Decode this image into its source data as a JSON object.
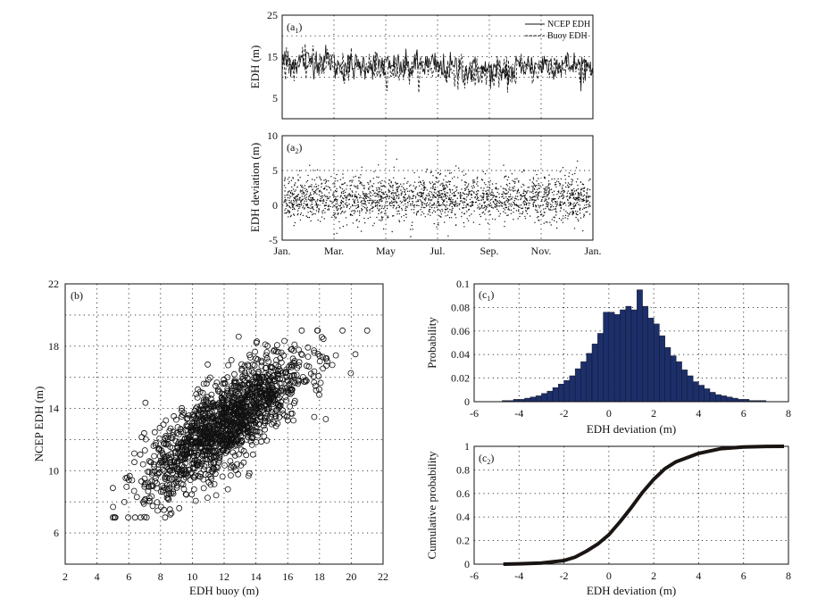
{
  "chart_data": [
    {
      "id": "a1",
      "panel_label": "(a1)",
      "type": "line",
      "ylabel": "EDH (m)",
      "x_ticks": [
        "Jan.",
        "Mar.",
        "May",
        "Jul.",
        "Sep.",
        "Nov.",
        "Jan."
      ],
      "ylim": [
        0,
        25
      ],
      "y_ticks": [
        5,
        15,
        25
      ],
      "grid": true,
      "legend_position": "top-right",
      "series": [
        {
          "name": "NCEP EDH",
          "style": "solid",
          "mean_by_month": [
            13.8,
            14.2,
            12.6,
            13.1,
            12.4,
            12.9,
            12.2,
            11.6,
            11.3,
            12.8,
            13.3,
            12.9
          ]
        },
        {
          "name": "Buoy EDH",
          "style": "dashed",
          "mean_by_month": [
            13.2,
            13.6,
            12.1,
            12.5,
            11.9,
            12.4,
            11.7,
            11.1,
            10.9,
            12.2,
            12.7,
            12.4
          ]
        }
      ],
      "value_range": [
        5,
        19
      ]
    },
    {
      "id": "a2",
      "panel_label": "(a2)",
      "type": "scatter",
      "ylabel": "EDH deviation (m)",
      "x_ticks": [
        "Jan.",
        "Mar.",
        "May",
        "Jul.",
        "Sep.",
        "Nov.",
        "Jan."
      ],
      "ylim": [
        -5,
        10
      ],
      "y_ticks": [
        -5,
        0,
        5,
        10
      ],
      "grid": true,
      "approx_mean": 1.0,
      "approx_spread": [
        -4.5,
        8.5
      ]
    },
    {
      "id": "b",
      "panel_label": "(b)",
      "type": "scatter",
      "xlabel": "EDH buoy (m)",
      "ylabel": "NCEP EDH (m)",
      "xlim": [
        2,
        22
      ],
      "ylim": [
        4,
        22
      ],
      "x_ticks": [
        2,
        4,
        6,
        8,
        10,
        12,
        14,
        16,
        18,
        20,
        22
      ],
      "y_ticks": [
        6,
        10,
        14,
        18,
        22
      ],
      "grid": true,
      "marker": "open-circle",
      "cloud_center": [
        12,
        13
      ],
      "x_range": [
        5,
        21
      ],
      "y_range": [
        7,
        19
      ]
    },
    {
      "id": "c1",
      "panel_label": "(c1)",
      "type": "bar",
      "xlabel": "EDH deviation (m)",
      "ylabel": "Probability",
      "xlim": [
        -6,
        8
      ],
      "ylim": [
        0,
        0.1
      ],
      "x_ticks": [
        -6,
        -4,
        -2,
        0,
        2,
        4,
        6,
        8
      ],
      "y_ticks": [
        "0",
        "0.02",
        "0.04",
        "0.06",
        "0.08",
        "0.1"
      ],
      "grid": true,
      "bar_color": "#1c2f6b",
      "bin_width": 0.25,
      "bin_start": -4.75,
      "values": [
        0.001,
        0.001,
        0.002,
        0.002,
        0.003,
        0.004,
        0.005,
        0.007,
        0.009,
        0.012,
        0.015,
        0.018,
        0.022,
        0.028,
        0.034,
        0.041,
        0.049,
        0.058,
        0.076,
        0.076,
        0.074,
        0.078,
        0.081,
        0.078,
        0.095,
        0.081,
        0.071,
        0.066,
        0.056,
        0.046,
        0.039,
        0.034,
        0.027,
        0.022,
        0.017,
        0.014,
        0.011,
        0.008,
        0.006,
        0.005,
        0.004,
        0.003,
        0.002,
        0.002,
        0.001,
        0.001,
        0.001
      ]
    },
    {
      "id": "c2",
      "panel_label": "(c2)",
      "type": "line",
      "xlabel": "EDH deviation (m)",
      "ylabel": "Cumulative probability",
      "xlim": [
        -6,
        8
      ],
      "ylim": [
        0,
        1
      ],
      "x_ticks": [
        -6,
        -4,
        -2,
        0,
        2,
        4,
        6,
        8
      ],
      "y_ticks": [
        "0",
        "0.2",
        "0.4",
        "0.6",
        "0.8",
        "1"
      ],
      "grid": true,
      "series": [
        {
          "x": [
            -4.7,
            -4,
            -3,
            -2,
            -1.5,
            -1,
            -0.5,
            0,
            0.5,
            1,
            1.5,
            2,
            2.5,
            3,
            4,
            5,
            6,
            7,
            7.8
          ],
          "y": [
            0,
            0.003,
            0.01,
            0.03,
            0.06,
            0.11,
            0.17,
            0.25,
            0.36,
            0.48,
            0.61,
            0.72,
            0.81,
            0.87,
            0.94,
            0.98,
            0.995,
            0.999,
            1
          ]
        }
      ]
    }
  ]
}
